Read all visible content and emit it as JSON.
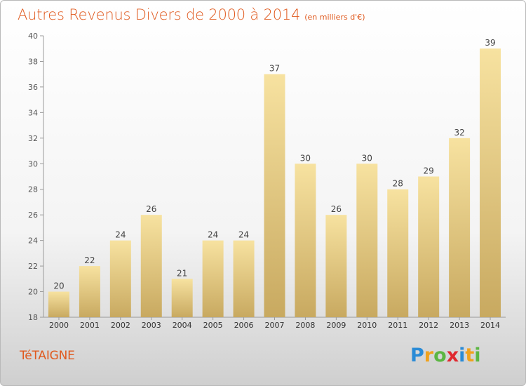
{
  "chart_data": {
    "type": "bar",
    "title": "Autres Revenus Divers de 2000 à 2014",
    "subtitle": "(en milliers d'€)",
    "categories": [
      "2000",
      "2001",
      "2002",
      "2003",
      "2004",
      "2005",
      "2006",
      "2007",
      "2008",
      "2009",
      "2010",
      "2011",
      "2012",
      "2013",
      "2014"
    ],
    "values": [
      20,
      22,
      24,
      26,
      21,
      24,
      24,
      37,
      30,
      26,
      30,
      28,
      29,
      32,
      39
    ],
    "ylim": [
      18,
      40
    ],
    "yticks": [
      18,
      20,
      22,
      24,
      26,
      28,
      30,
      32,
      34,
      36,
      38,
      40
    ],
    "grid": false,
    "bar_color_top": "#f7e2a0",
    "bar_color_bottom": "#c8a960"
  },
  "location": "TéTAIGNE",
  "logo": {
    "letters": [
      "P",
      "r",
      "o",
      "x",
      "i",
      "t",
      "i"
    ],
    "colors": [
      "#2a8bd6",
      "#f0a21c",
      "#5bb642",
      "#e0292f",
      "#2a8bd6",
      "#f0a21c",
      "#5bb642"
    ]
  }
}
